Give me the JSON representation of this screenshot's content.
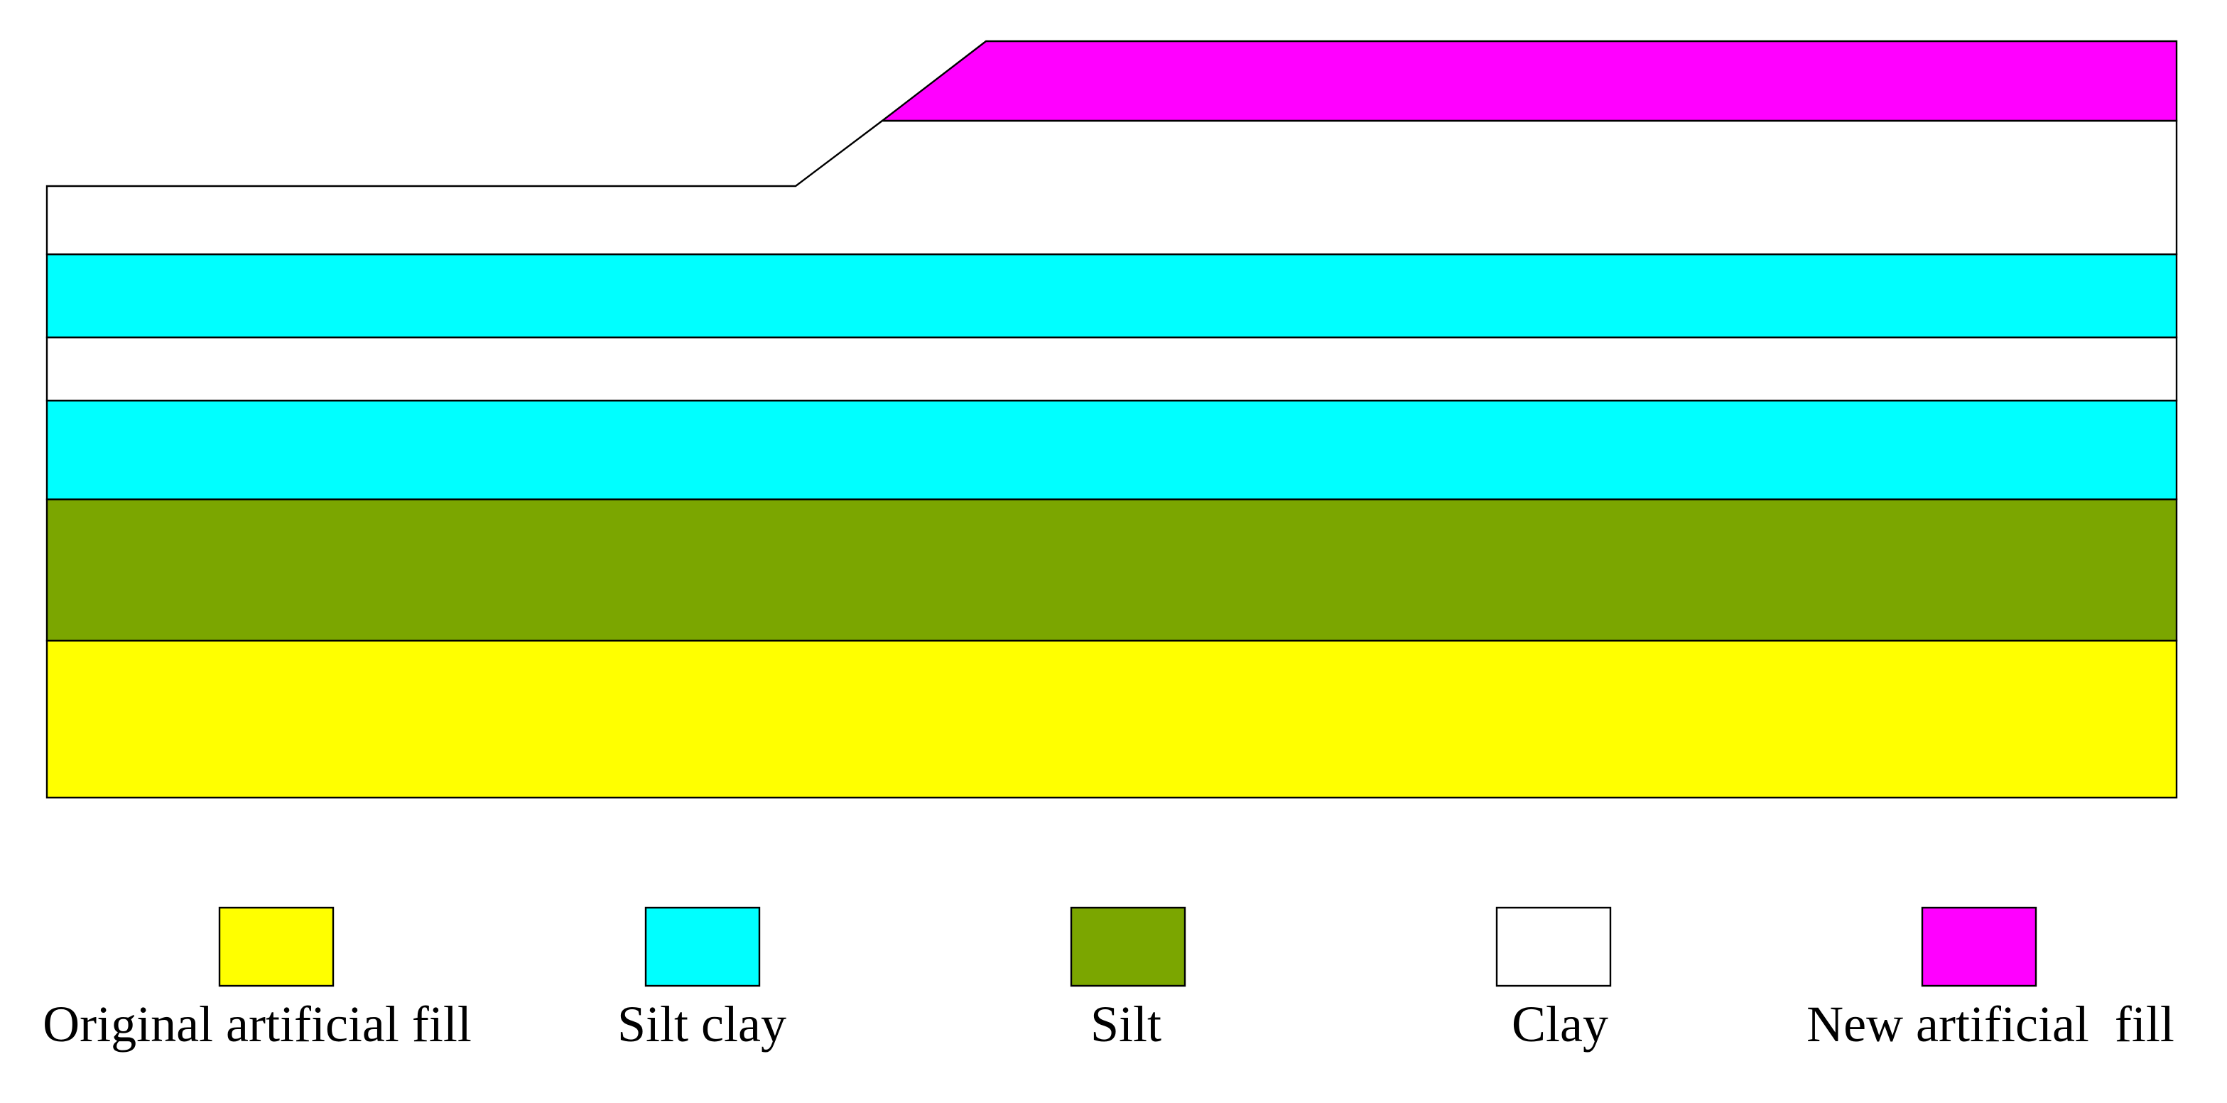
{
  "layers": [
    {
      "id": "new-artificial-fill",
      "material": "New artificial  fill",
      "color": "#ff00ff"
    },
    {
      "id": "clay-upper",
      "material": "Clay",
      "color": "#ffffff"
    },
    {
      "id": "silt-clay-upper",
      "material": "Silt clay",
      "color": "#00ffff"
    },
    {
      "id": "clay-middle",
      "material": "Clay",
      "color": "#ffffff"
    },
    {
      "id": "silt-clay-lower",
      "material": "Silt clay",
      "color": "#00ffff"
    },
    {
      "id": "silt",
      "material": "Silt",
      "color": "#7ba600"
    },
    {
      "id": "original-artificial-fill",
      "material": "Original artificial fill",
      "color": "#ffff00"
    }
  ],
  "legend": [
    {
      "label": "Original artificial fill",
      "color": "#ffff00"
    },
    {
      "label": "Silt clay",
      "color": "#00ffff"
    },
    {
      "label": "Silt",
      "color": "#7ba600"
    },
    {
      "label": "Clay",
      "color": "#ffffff"
    },
    {
      "label": "New artificial  fill",
      "color": "#ff00ff"
    }
  ]
}
